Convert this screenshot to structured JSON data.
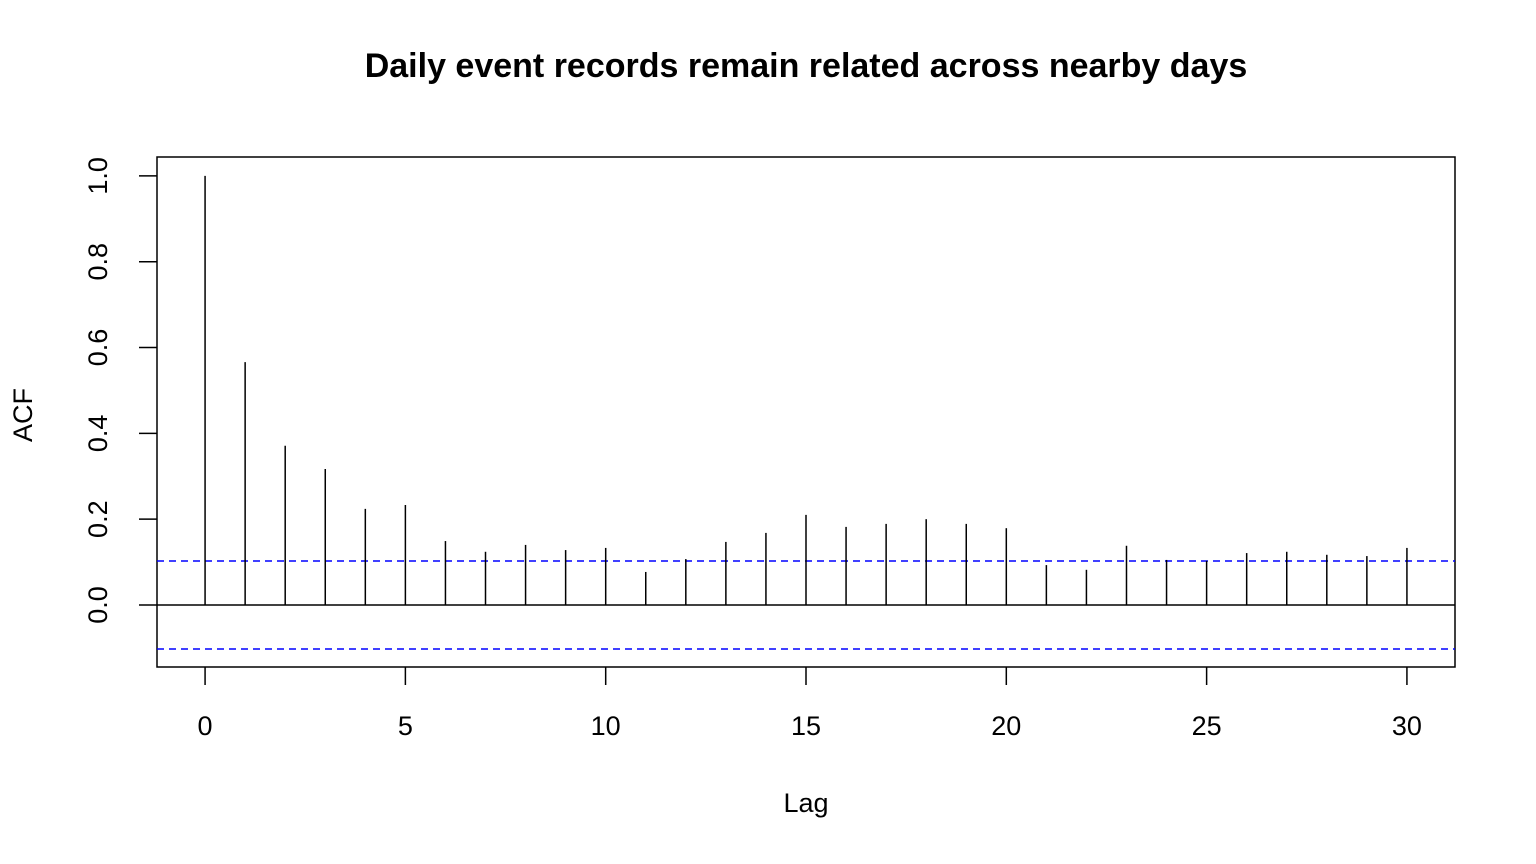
{
  "chart_data": {
    "type": "acf",
    "title": "Daily event records remain related across nearby days",
    "x_label": "Lag",
    "y_label": "ACF",
    "x": [
      0,
      1,
      2,
      3,
      4,
      5,
      6,
      7,
      8,
      9,
      10,
      11,
      12,
      13,
      14,
      15,
      16,
      17,
      18,
      19,
      20,
      21,
      22,
      23,
      24,
      25,
      26,
      27,
      28,
      29,
      30
    ],
    "values": [
      1.0,
      0.566,
      0.371,
      0.317,
      0.224,
      0.233,
      0.149,
      0.124,
      0.14,
      0.128,
      0.133,
      0.077,
      0.107,
      0.147,
      0.168,
      0.21,
      0.182,
      0.189,
      0.2,
      0.189,
      0.179,
      0.093,
      0.082,
      0.138,
      0.105,
      0.103,
      0.121,
      0.124,
      0.117,
      0.114,
      0.133
    ],
    "color": "#000000",
    "confidence_band": 0.1026,
    "confidence_color": "#0000ff",
    "xlim": [
      -1.2,
      31.2
    ],
    "ylim": [
      -0.1445,
      1.044
    ],
    "xticks": [
      0,
      5,
      10,
      15,
      20,
      25,
      30
    ],
    "yticks": [
      {
        "value": 0,
        "label": "0.0"
      },
      0.2,
      0.4,
      0.6,
      0.8,
      {
        "value": 1,
        "label": "1.0"
      }
    ]
  }
}
